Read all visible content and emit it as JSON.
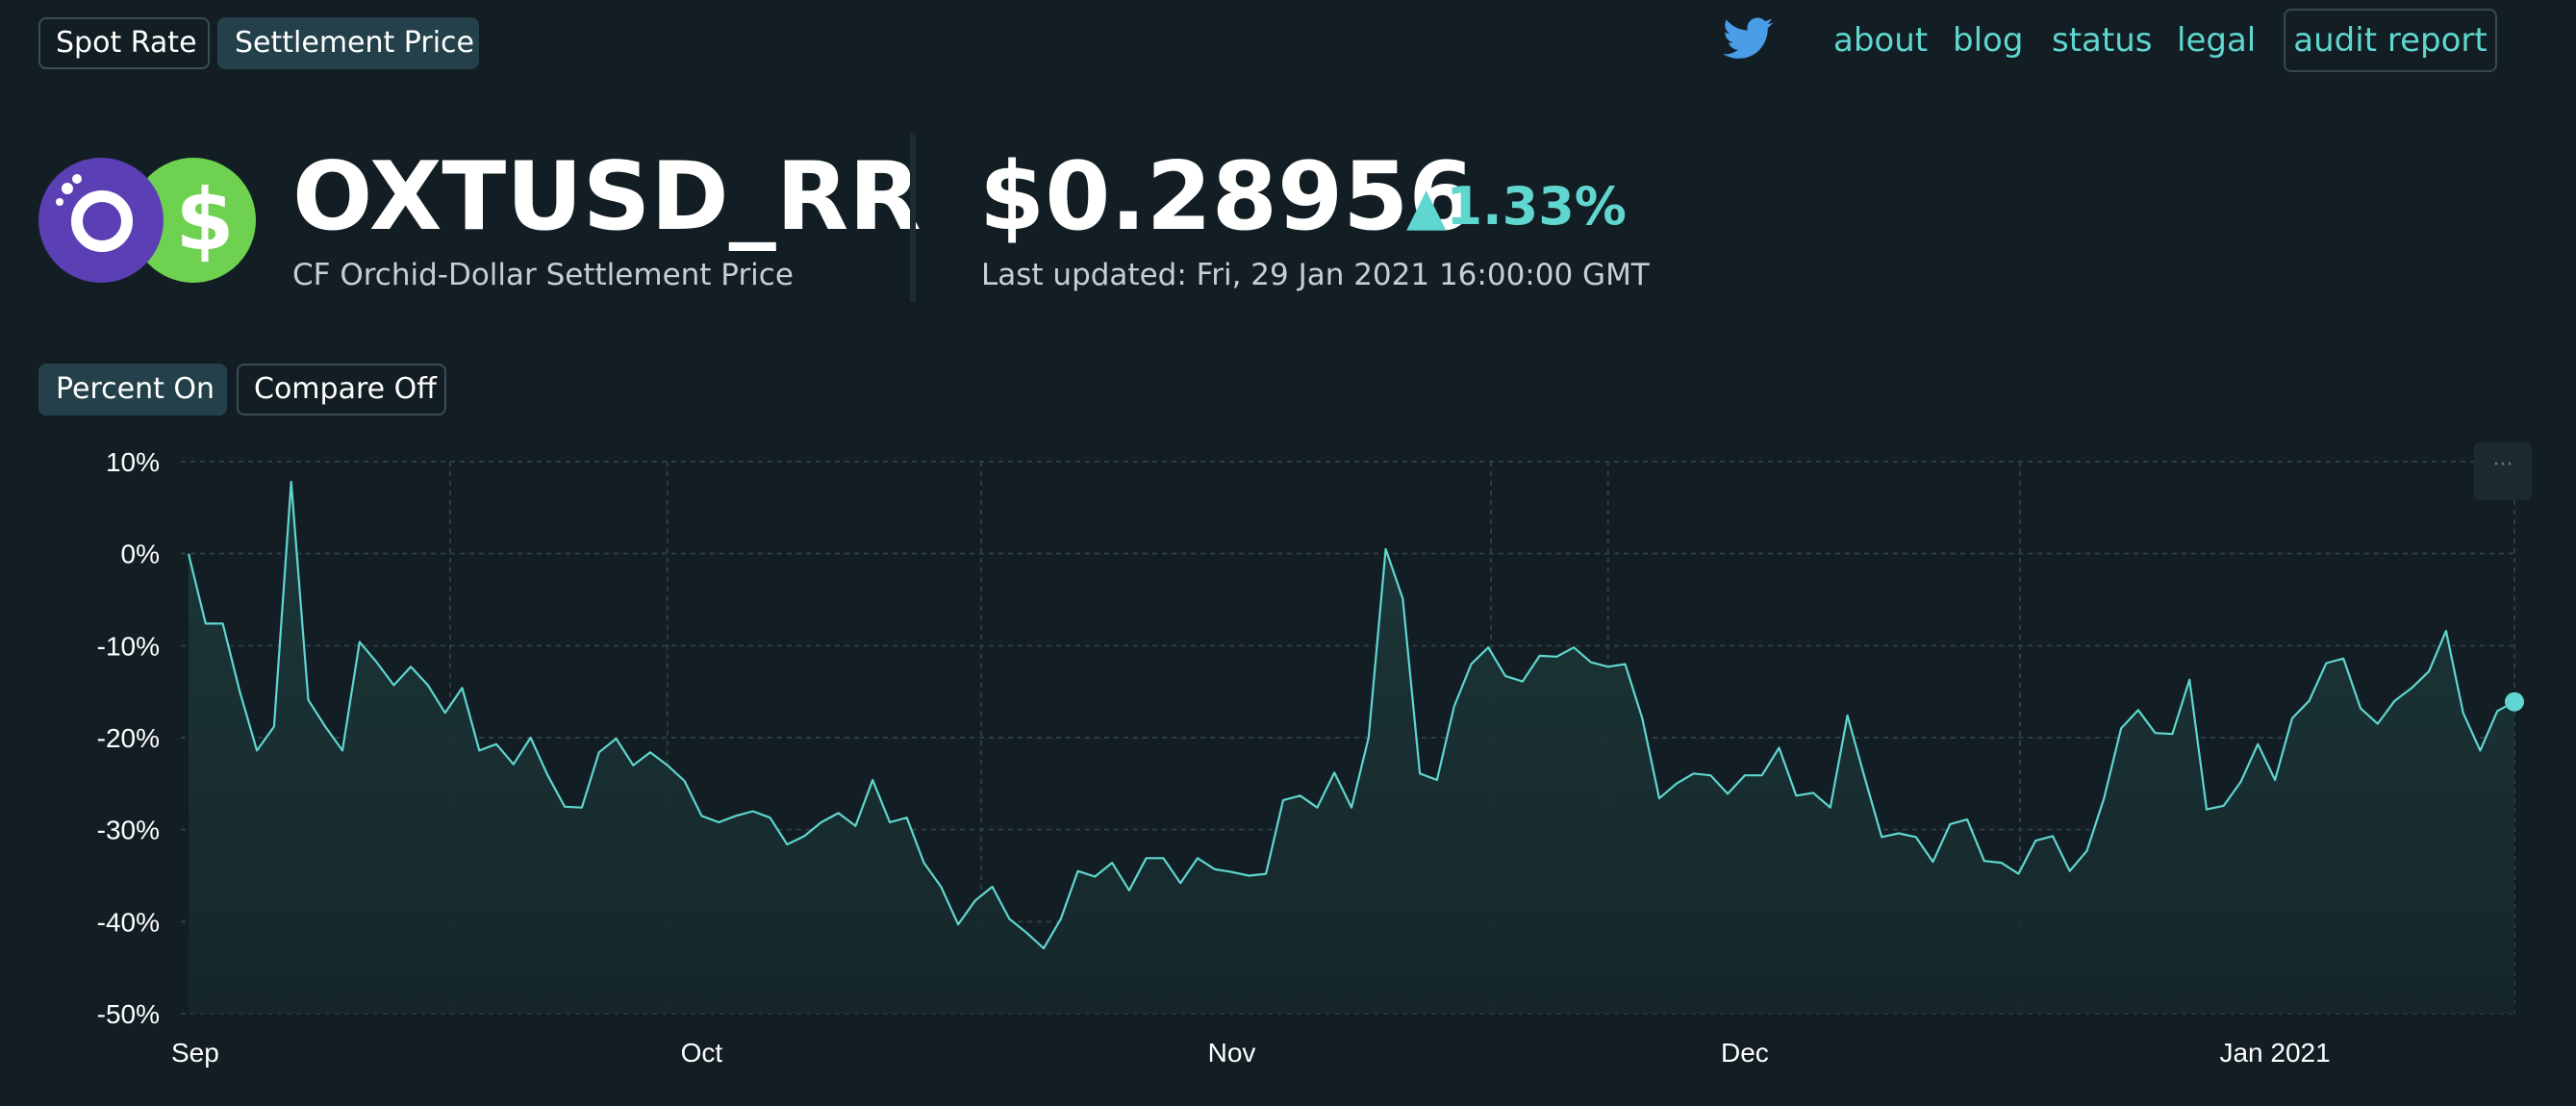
{
  "mode_tabs": [
    {
      "label": "Spot Rate",
      "active": false
    },
    {
      "label": "Settlement Price",
      "active": true
    }
  ],
  "nav": {
    "twitter_icon": "twitter-bird-icon",
    "links": [
      "about",
      "blog",
      "status",
      "legal"
    ],
    "audit_label": "audit report"
  },
  "asset": {
    "ticker": "OXTUSD_RR",
    "description": "CF Orchid-Dollar Settlement Price",
    "logo_left": "orchid-logo",
    "logo_right": "dollar-logo",
    "logo_right_symbol": "$"
  },
  "price": {
    "value": "$0.28956",
    "change": "▲1.33%",
    "updated": "Last updated: Fri, 29 Jan 2021 16:00:00 GMT"
  },
  "chart_toggles": [
    {
      "label": "Percent On",
      "active": true
    },
    {
      "label": "Compare Off",
      "active": false
    }
  ],
  "chart_menu_label": "···",
  "colors": {
    "background": "#121e23",
    "accent": "#5fd6cf",
    "active_tab": "#24414b",
    "orchid": "#5b3fb4",
    "dollar": "#6ed14f"
  },
  "chart_data": {
    "type": "area",
    "title": "",
    "xlabel": "",
    "ylabel": "",
    "ylim": [
      -50,
      10
    ],
    "y_ticks": [
      "10%",
      "0%",
      "-10%",
      "-20%",
      "-30%",
      "-40%",
      "-50%"
    ],
    "x_ticks": [
      "Sep",
      "Oct",
      "Nov",
      "Dec",
      "Jan 2021"
    ],
    "x_start": "2020-09-01",
    "grid": true,
    "series": [
      {
        "values": [
          0.0,
          -7.6,
          -7.6,
          -15.0,
          -21.4,
          -18.8,
          7.8,
          -15.9,
          -18.8,
          -21.4,
          -9.6,
          -11.8,
          -14.3,
          -12.3,
          -14.3,
          -17.3,
          -14.6,
          -21.4,
          -20.7,
          -22.9,
          -20.0,
          -24.1,
          -27.5,
          -27.6,
          -21.6,
          -20.1,
          -23.0,
          -21.6,
          -23.0,
          -24.7,
          -28.5,
          -29.2,
          -28.5,
          -28.0,
          -28.7,
          -31.6,
          -30.7,
          -29.2,
          -28.2,
          -29.6,
          -24.6,
          -29.2,
          -28.7,
          -33.6,
          -36.2,
          -40.3,
          -37.7,
          -36.2,
          -39.7,
          -41.2,
          -42.9,
          -39.7,
          -34.5,
          -35.1,
          -33.6,
          -36.6,
          -33.1,
          -33.1,
          -35.8,
          -33.1,
          -34.3,
          -34.6,
          -35.0,
          -34.8,
          -26.8,
          -26.3,
          -27.6,
          -23.8,
          -27.6,
          -20.0,
          0.5,
          -4.9,
          -23.9,
          -24.6,
          -16.6,
          -12.0,
          -10.2,
          -13.3,
          -13.9,
          -11.1,
          -11.2,
          -10.2,
          -11.8,
          -12.3,
          -12.0,
          -17.9,
          -26.6,
          -25.0,
          -23.9,
          -24.1,
          -26.1,
          -24.1,
          -24.1,
          -21.1,
          -26.3,
          -26.0,
          -27.6,
          -17.6,
          -24.3,
          -30.8,
          -30.4,
          -30.8,
          -33.5,
          -29.4,
          -28.9,
          -33.4,
          -33.6,
          -34.8,
          -31.2,
          -30.7,
          -34.5,
          -32.3,
          -26.6,
          -19.0,
          -17.0,
          -19.5,
          -19.6,
          -13.7,
          -27.8,
          -27.4,
          -24.8,
          -20.7,
          -24.6,
          -17.9,
          -16.0,
          -11.9,
          -11.4,
          -16.8,
          -18.5,
          -16.0,
          -14.6,
          -12.8,
          -8.4,
          -17.3,
          -21.4,
          -17.1,
          -16.1
        ]
      }
    ]
  }
}
